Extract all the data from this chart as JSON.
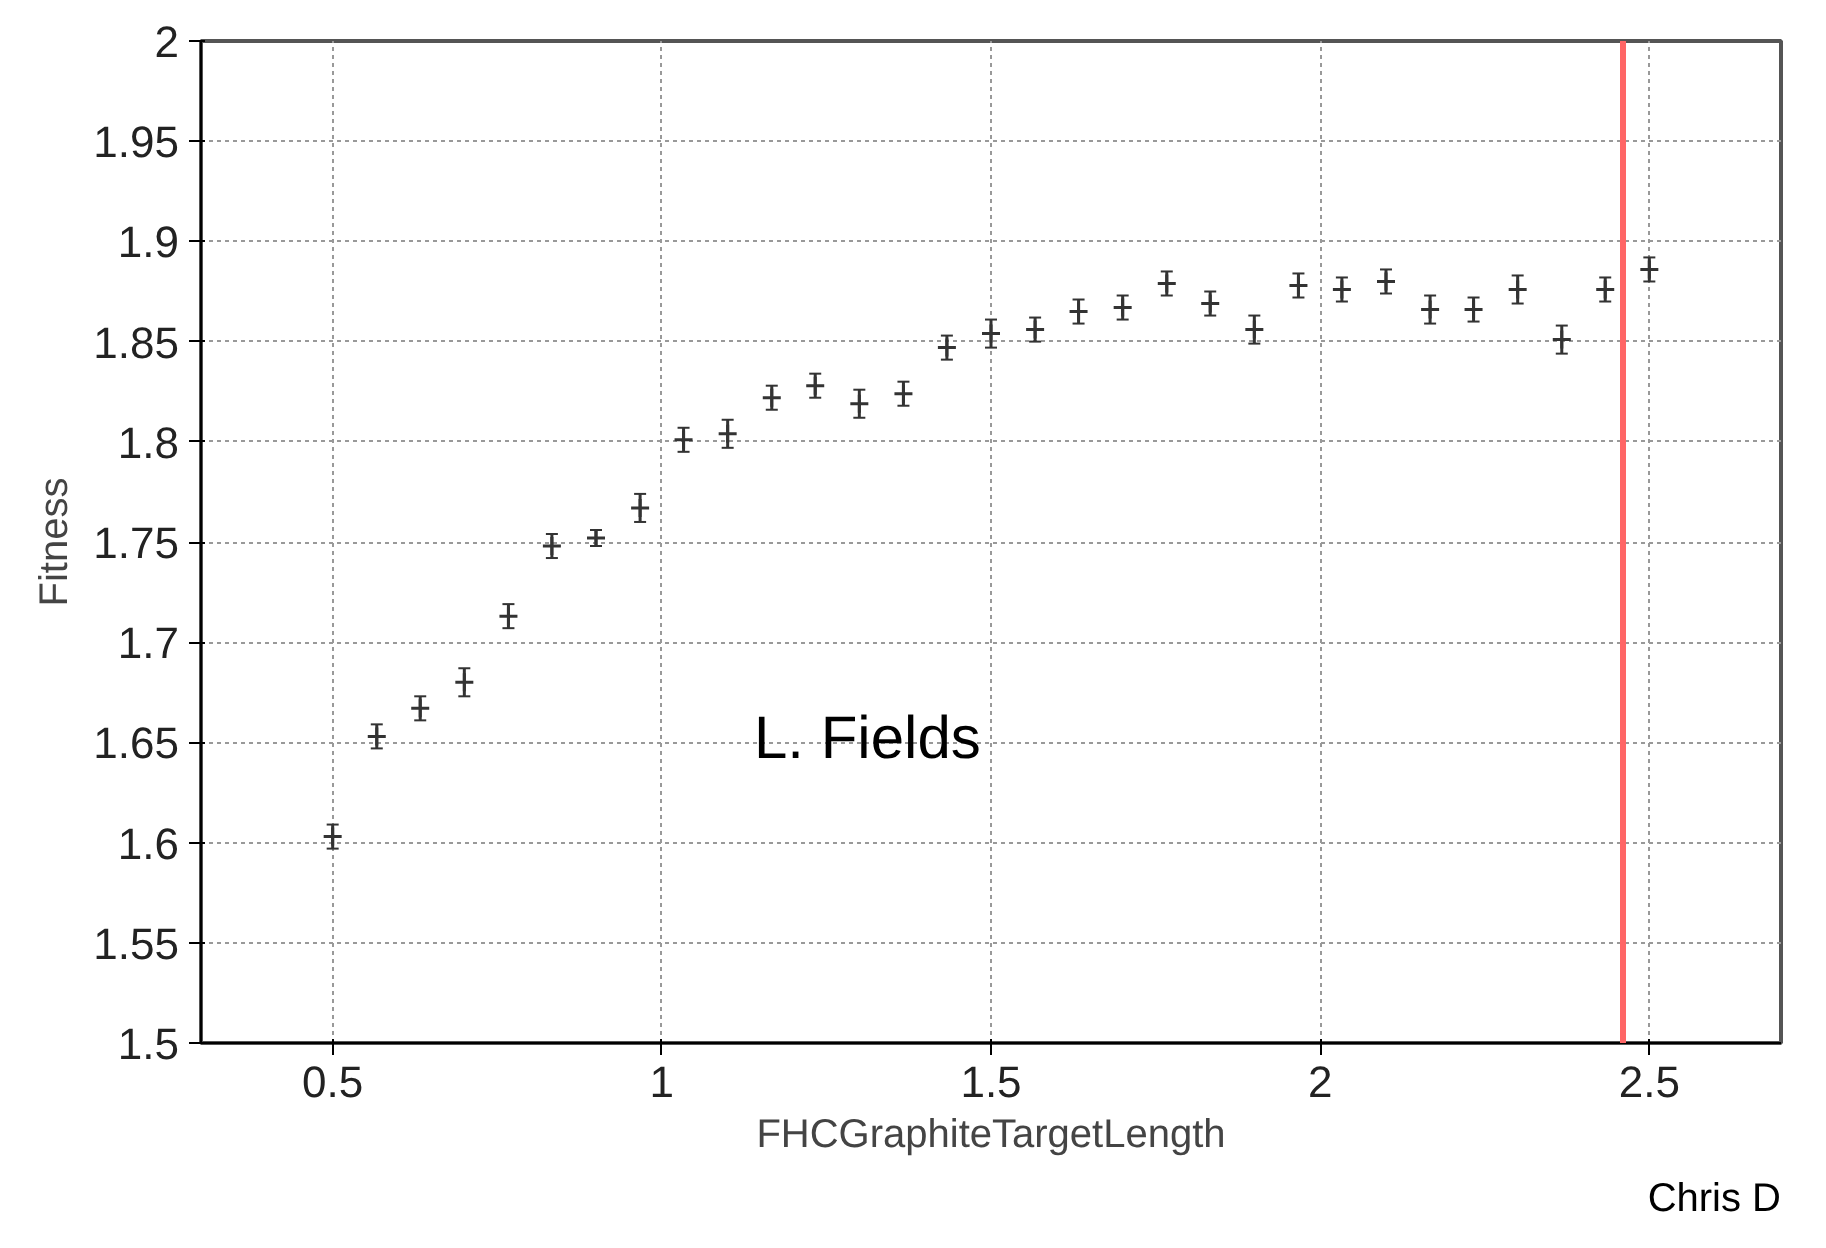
{
  "chart_data": {
    "type": "scatter",
    "xlabel": "FHCGraphiteTargetLength",
    "ylabel": "Fitness",
    "x": [
      0.5,
      0.567,
      0.633,
      0.7,
      0.767,
      0.833,
      0.9,
      0.967,
      1.033,
      1.1,
      1.167,
      1.233,
      1.3,
      1.367,
      1.433,
      1.5,
      1.567,
      1.633,
      1.7,
      1.767,
      1.833,
      1.9,
      1.967,
      2.033,
      2.1,
      2.167,
      2.233,
      2.3,
      2.367,
      2.433,
      2.5
    ],
    "series": [
      {
        "color": "#333333",
        "values": [
          1.603,
          1.653,
          1.667,
          1.68,
          1.713,
          1.748,
          1.752,
          1.767,
          1.801,
          1.804,
          1.822,
          1.828,
          1.819,
          1.824,
          1.847,
          1.854,
          1.856,
          1.865,
          1.867,
          1.879,
          1.869,
          1.856,
          1.878,
          1.876,
          1.88,
          1.866,
          1.866,
          1.876,
          1.851,
          1.876,
          1.886
        ],
        "errors": [
          0.006,
          0.006,
          0.006,
          0.007,
          0.006,
          0.006,
          0.004,
          0.007,
          0.006,
          0.007,
          0.006,
          0.006,
          0.007,
          0.006,
          0.006,
          0.007,
          0.006,
          0.006,
          0.006,
          0.006,
          0.006,
          0.007,
          0.006,
          0.006,
          0.006,
          0.007,
          0.006,
          0.007,
          0.007,
          0.006,
          0.006
        ]
      }
    ],
    "xlim": [
      0.3,
      2.7
    ],
    "ylim": [
      1.5,
      2
    ],
    "xticks": [
      0.5,
      1,
      1.5,
      2,
      2.5
    ],
    "yticks": [
      1.5,
      1.55,
      1.6,
      1.65,
      1.7,
      1.75,
      1.8,
      1.85,
      1.9,
      1.95,
      2
    ],
    "ref_lines": [
      {
        "axis": "x",
        "value": 2.46,
        "color": "#ff6666"
      }
    ],
    "annotations": [
      "L. Fields",
      "Chris D"
    ],
    "grid": true,
    "marker": "cross"
  }
}
